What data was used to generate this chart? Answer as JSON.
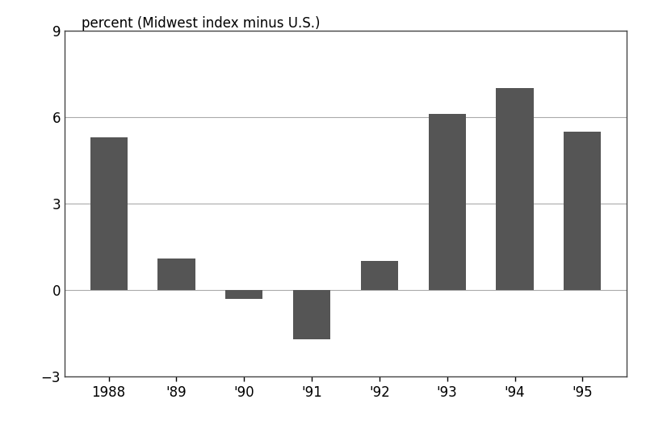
{
  "categories": [
    "1988",
    "'89",
    "'90",
    "'91",
    "'92",
    "'93",
    "'94",
    "'95"
  ],
  "values": [
    5.3,
    1.1,
    -0.3,
    -1.7,
    1.0,
    6.1,
    7.0,
    5.5
  ],
  "bar_color": "#555555",
  "ylabel_text": "percent (Midwest index minus U.S.)",
  "ylim": [
    -3,
    9
  ],
  "yticks": [
    -3,
    0,
    3,
    6,
    9
  ],
  "background_color": "#ffffff",
  "bar_width": 0.55,
  "label_fontsize": 12,
  "tick_fontsize": 12,
  "grid_color": "#aaaaaa",
  "grid_linewidth": 0.8,
  "spine_color": "#444444",
  "spine_linewidth": 1.0
}
